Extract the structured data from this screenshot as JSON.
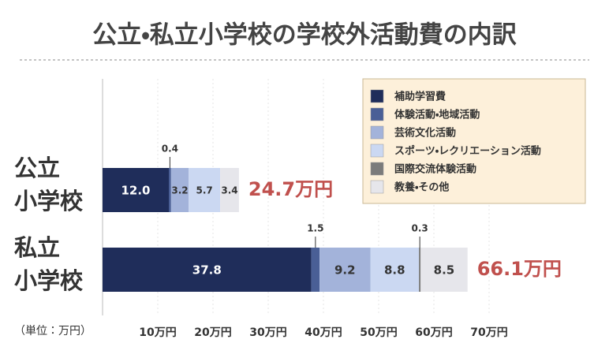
{
  "chart_data": {
    "type": "stacked-barh",
    "title": "公立・私立小学校の学校外活動費の内訳",
    "unit_label": "（単位：万円）",
    "categories": [
      "公立\n小学校",
      "私立\n小学校"
    ],
    "series": [
      {
        "name": "補助学習費",
        "color": "#1f2d5a",
        "values": [
          12.0,
          37.8
        ],
        "value_labels": [
          "12.0",
          "37.8"
        ]
      },
      {
        "name": "体験活動・地域活動",
        "color": "#4a5f96",
        "values": [
          0.4,
          1.5
        ]
      },
      {
        "name": "芸術文化活動",
        "color": "#a3b3da",
        "values": [
          3.2,
          9.2
        ]
      },
      {
        "name": "スポーツ・レクリエーション活動",
        "color": "#cbd8f2",
        "values": [
          5.7,
          8.8
        ]
      },
      {
        "name": "国際交流体験活動",
        "color": "#7b7b7b",
        "values": [
          0,
          0.3
        ],
        "value_labels": [
          null,
          "0.3"
        ]
      },
      {
        "name": "教養・その他",
        "color": "#e6e6eb",
        "values": [
          3.4,
          8.5
        ]
      }
    ],
    "total_labels": [
      "24.7万円",
      "66.1万円"
    ],
    "total_color": "#c0504d",
    "xlim": [
      0,
      70
    ],
    "xticks": [
      {
        "value": 10,
        "label": "10万円"
      },
      {
        "value": 20,
        "label": "20万円"
      },
      {
        "value": 30,
        "label": "30万円"
      },
      {
        "value": 40,
        "label": "40万円"
      },
      {
        "value": 50,
        "label": "50万円"
      },
      {
        "value": 60,
        "label": "60万円"
      },
      {
        "value": 70,
        "label": "70万円"
      }
    ],
    "grid": true,
    "legend": "top-right"
  }
}
